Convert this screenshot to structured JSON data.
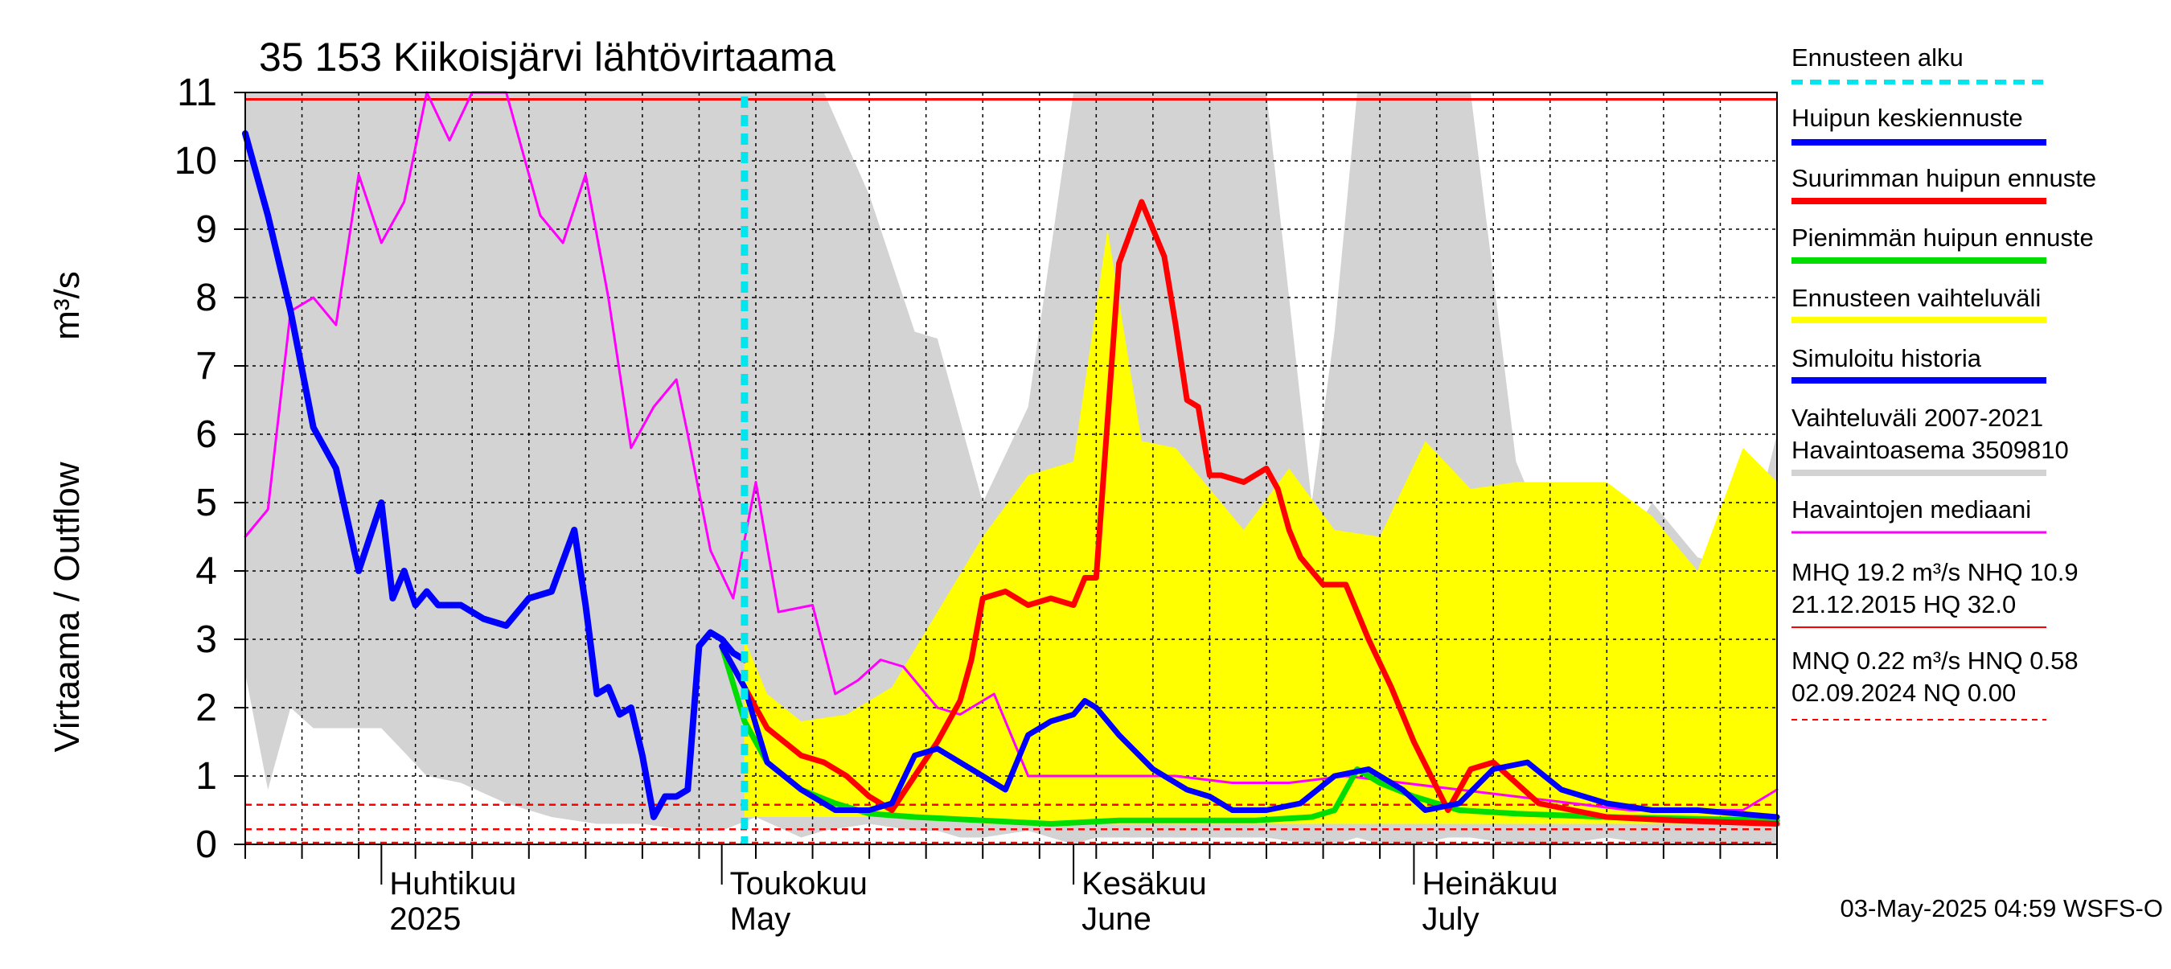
{
  "chart_data": {
    "type": "line",
    "title": "35 153 Kiikoisjärvi lähtövirtaama",
    "ylabel_left": "Virtaama / Outflow",
    "ylabel_unit": "m³/s",
    "ylim": [
      0,
      11
    ],
    "yticks": [
      0,
      1,
      2,
      3,
      4,
      5,
      6,
      7,
      8,
      9,
      10,
      11
    ],
    "x_range": [
      "2025-03-20",
      "2025-08-02"
    ],
    "grid": true,
    "legend_position": "right",
    "month_labels": [
      {
        "date": "2025-04-01",
        "fi": "Huhtikuu",
        "en": "2025"
      },
      {
        "date": "2025-05-01",
        "fi": "Toukokuu",
        "en": "May"
      },
      {
        "date": "2025-06-01",
        "fi": "Kesäkuu",
        "en": "June"
      },
      {
        "date": "2025-07-01",
        "fi": "Heinäkuu",
        "en": "July"
      }
    ],
    "forecast_start": "2025-05-03",
    "reference_lines": {
      "NHQ": 10.9,
      "HNQ": 0.58,
      "NQ": 0.0,
      "MNQ": 0.22
    },
    "series": [
      {
        "name": "Vaihteluväli 2007-2021 Havaintoasema 3509810",
        "kind": "band",
        "color": "#d3d3d3",
        "x": [
          "2025-03-20",
          "2025-03-22",
          "2025-03-24",
          "2025-03-26",
          "2025-04-01",
          "2025-04-05",
          "2025-04-08",
          "2025-04-12",
          "2025-04-16",
          "2025-04-20",
          "2025-04-24",
          "2025-04-28",
          "2025-05-01",
          "2025-05-04",
          "2025-05-08",
          "2025-05-10",
          "2025-05-14",
          "2025-05-18",
          "2025-05-20",
          "2025-05-22",
          "2025-05-24",
          "2025-05-28",
          "2025-06-01",
          "2025-06-03",
          "2025-06-06",
          "2025-06-10",
          "2025-06-14",
          "2025-06-18",
          "2025-06-22",
          "2025-06-24",
          "2025-06-26",
          "2025-06-28",
          "2025-07-01",
          "2025-07-04",
          "2025-07-06",
          "2025-07-10",
          "2025-07-14",
          "2025-07-18",
          "2025-07-22",
          "2025-07-26",
          "2025-07-30",
          "2025-08-02"
        ],
        "upper": [
          11,
          11,
          11,
          11,
          11,
          11,
          11,
          11,
          11,
          11,
          11,
          11,
          11,
          11,
          11,
          11,
          9.5,
          7.5,
          7.4,
          6.2,
          5.0,
          6.4,
          11,
          11,
          11,
          11,
          11,
          11,
          5.0,
          7.5,
          11,
          11,
          11,
          11,
          11,
          5.6,
          4.0,
          3.9,
          5.0,
          4.2,
          4.0,
          6.0
        ],
        "lower": [
          2.5,
          0.8,
          2.0,
          1.7,
          1.7,
          1.0,
          0.9,
          0.6,
          0.4,
          0.3,
          0.3,
          0.2,
          0.2,
          0.4,
          0.1,
          0.2,
          0.3,
          0.2,
          0.2,
          0.1,
          0.1,
          0.2,
          0.0,
          0.1,
          0.1,
          0.1,
          0.1,
          0.1,
          0.0,
          0.0,
          0.1,
          0.0,
          0.0,
          0.1,
          0.1,
          0.0,
          0.0,
          0.1,
          0.0,
          0.0,
          0.0,
          0.0
        ]
      },
      {
        "name": "Ennusteen vaihteluväli",
        "kind": "band",
        "color": "#ffff00",
        "x": [
          "2025-05-03",
          "2025-05-05",
          "2025-05-08",
          "2025-05-12",
          "2025-05-16",
          "2025-05-20",
          "2025-05-24",
          "2025-05-28",
          "2025-06-01",
          "2025-06-04",
          "2025-06-07",
          "2025-06-10",
          "2025-06-13",
          "2025-06-16",
          "2025-06-20",
          "2025-06-24",
          "2025-06-28",
          "2025-07-02",
          "2025-07-06",
          "2025-07-10",
          "2025-07-14",
          "2025-07-18",
          "2025-07-22",
          "2025-07-26",
          "2025-07-30",
          "2025-08-02"
        ],
        "upper": [
          3.0,
          2.2,
          1.8,
          1.9,
          2.3,
          3.4,
          4.5,
          5.4,
          5.6,
          9.0,
          5.9,
          5.8,
          5.2,
          4.6,
          5.5,
          4.6,
          4.5,
          5.9,
          5.2,
          5.3,
          5.3,
          5.3,
          4.8,
          4.0,
          5.8,
          5.3
        ],
        "lower": [
          0.4,
          0.4,
          0.4,
          0.4,
          0.4,
          0.4,
          0.3,
          0.3,
          0.3,
          0.3,
          0.3,
          0.3,
          0.3,
          0.3,
          0.3,
          0.3,
          0.3,
          0.3,
          0.3,
          0.3,
          0.3,
          0.3,
          0.3,
          0.3,
          0.3,
          0.3
        ]
      },
      {
        "name": "Havaintojen mediaani",
        "kind": "line",
        "color": "#ff00ff",
        "width": 3,
        "x": [
          "2025-03-20",
          "2025-03-22",
          "2025-03-24",
          "2025-03-26",
          "2025-03-28",
          "2025-03-30",
          "2025-04-01",
          "2025-04-03",
          "2025-04-05",
          "2025-04-07",
          "2025-04-09",
          "2025-04-12",
          "2025-04-15",
          "2025-04-17",
          "2025-04-19",
          "2025-04-21",
          "2025-04-23",
          "2025-04-25",
          "2025-04-27",
          "2025-04-28",
          "2025-04-30",
          "2025-05-02",
          "2025-05-04",
          "2025-05-06",
          "2025-05-09",
          "2025-05-11",
          "2025-05-13",
          "2025-05-15",
          "2025-05-17",
          "2025-05-20",
          "2025-05-22",
          "2025-05-25",
          "2025-05-28",
          "2025-06-01",
          "2025-06-05",
          "2025-06-10",
          "2025-06-15",
          "2025-06-20",
          "2025-06-25",
          "2025-06-30",
          "2025-07-05",
          "2025-07-10",
          "2025-07-15",
          "2025-07-20",
          "2025-07-25",
          "2025-07-30",
          "2025-08-02"
        ],
        "y": [
          4.5,
          4.9,
          7.8,
          8.0,
          7.6,
          9.8,
          8.8,
          9.4,
          11,
          10.3,
          11,
          11,
          9.2,
          8.8,
          9.8,
          8.0,
          5.8,
          6.4,
          6.8,
          6.0,
          4.3,
          3.6,
          5.3,
          3.4,
          3.5,
          2.2,
          2.4,
          2.7,
          2.6,
          2.0,
          1.9,
          2.2,
          1.0,
          1.0,
          1.0,
          1.0,
          0.9,
          0.9,
          1.0,
          0.9,
          0.8,
          0.7,
          0.6,
          0.5,
          0.5,
          0.5,
          0.8
        ]
      },
      {
        "name": "Simuloitu historia",
        "kind": "line",
        "color": "#0000ff",
        "width": 8,
        "x": [
          "2025-03-20",
          "2025-03-22",
          "2025-03-24",
          "2025-03-26",
          "2025-03-28",
          "2025-03-30",
          "2025-04-01",
          "2025-04-02",
          "2025-04-03",
          "2025-04-04",
          "2025-04-05",
          "2025-04-06",
          "2025-04-08",
          "2025-04-10",
          "2025-04-12",
          "2025-04-14",
          "2025-04-16",
          "2025-04-18",
          "2025-04-19",
          "2025-04-20",
          "2025-04-21",
          "2025-04-22",
          "2025-04-23",
          "2025-04-24",
          "2025-04-25",
          "2025-04-26",
          "2025-04-27",
          "2025-04-28",
          "2025-04-29",
          "2025-04-30",
          "2025-05-01",
          "2025-05-02",
          "2025-05-03"
        ],
        "y": [
          10.4,
          9.2,
          7.8,
          6.1,
          5.5,
          4.0,
          5.0,
          3.6,
          4.0,
          3.5,
          3.7,
          3.5,
          3.5,
          3.3,
          3.2,
          3.6,
          3.7,
          4.6,
          3.5,
          2.2,
          2.3,
          1.9,
          2.0,
          1.3,
          0.4,
          0.7,
          0.7,
          0.8,
          2.9,
          3.1,
          3.0,
          2.8,
          2.7
        ]
      },
      {
        "name": "Huipun keskiennuste",
        "kind": "line",
        "color": "#0000ff",
        "width": 7,
        "x": [
          "2025-05-01",
          "2025-05-03",
          "2025-05-05",
          "2025-05-08",
          "2025-05-11",
          "2025-05-14",
          "2025-05-16",
          "2025-05-18",
          "2025-05-20",
          "2025-05-22",
          "2025-05-24",
          "2025-05-26",
          "2025-05-28",
          "2025-05-30",
          "2025-06-01",
          "2025-06-02",
          "2025-06-03",
          "2025-06-05",
          "2025-06-08",
          "2025-06-11",
          "2025-06-13",
          "2025-06-15",
          "2025-06-18",
          "2025-06-21",
          "2025-06-24",
          "2025-06-27",
          "2025-06-30",
          "2025-07-02",
          "2025-07-05",
          "2025-07-08",
          "2025-07-11",
          "2025-07-14",
          "2025-07-18",
          "2025-07-22",
          "2025-07-26",
          "2025-08-02"
        ],
        "y": [
          2.9,
          2.3,
          1.2,
          0.8,
          0.5,
          0.5,
          0.6,
          1.3,
          1.4,
          1.2,
          1.0,
          0.8,
          1.6,
          1.8,
          1.9,
          2.1,
          2.0,
          1.6,
          1.1,
          0.8,
          0.7,
          0.5,
          0.5,
          0.6,
          1.0,
          1.1,
          0.8,
          0.5,
          0.6,
          1.1,
          1.2,
          0.8,
          0.6,
          0.5,
          0.5,
          0.4
        ]
      },
      {
        "name": "Suurimman huipun ennuste",
        "kind": "line",
        "color": "#ff0000",
        "width": 7,
        "x": [
          "2025-05-01",
          "2025-05-03",
          "2025-05-05",
          "2025-05-08",
          "2025-05-10",
          "2025-05-12",
          "2025-05-14",
          "2025-05-16",
          "2025-05-18",
          "2025-05-20",
          "2025-05-22",
          "2025-05-23",
          "2025-05-24",
          "2025-05-26",
          "2025-05-28",
          "2025-05-30",
          "2025-06-01",
          "2025-06-02",
          "2025-06-03",
          "2025-06-04",
          "2025-06-05",
          "2025-06-07",
          "2025-06-09",
          "2025-06-10",
          "2025-06-11",
          "2025-06-12",
          "2025-06-13",
          "2025-06-14",
          "2025-06-16",
          "2025-06-18",
          "2025-06-19",
          "2025-06-20",
          "2025-06-21",
          "2025-06-23",
          "2025-06-25",
          "2025-06-27",
          "2025-06-29",
          "2025-07-01",
          "2025-07-04",
          "2025-07-06",
          "2025-07-08",
          "2025-07-12",
          "2025-07-18",
          "2025-07-24",
          "2025-08-02"
        ],
        "y": [
          2.9,
          2.3,
          1.7,
          1.3,
          1.2,
          1.0,
          0.7,
          0.5,
          1.0,
          1.5,
          2.1,
          2.7,
          3.6,
          3.7,
          3.5,
          3.6,
          3.5,
          3.9,
          3.9,
          6.2,
          8.5,
          9.4,
          8.6,
          7.6,
          6.5,
          6.4,
          5.4,
          5.4,
          5.3,
          5.5,
          5.2,
          4.6,
          4.2,
          3.8,
          3.8,
          3.0,
          2.3,
          1.5,
          0.5,
          1.1,
          1.2,
          0.6,
          0.4,
          0.35,
          0.3
        ]
      },
      {
        "name": "Pienimmän huipun ennuste",
        "kind": "line",
        "color": "#00dd00",
        "width": 7,
        "x": [
          "2025-05-01",
          "2025-05-03",
          "2025-05-05",
          "2025-05-08",
          "2025-05-11",
          "2025-05-14",
          "2025-05-18",
          "2025-05-24",
          "2025-05-30",
          "2025-06-05",
          "2025-06-11",
          "2025-06-17",
          "2025-06-22",
          "2025-06-24",
          "2025-06-25",
          "2025-06-26",
          "2025-06-27",
          "2025-06-28",
          "2025-07-01",
          "2025-07-05",
          "2025-07-10",
          "2025-07-18",
          "2025-08-02"
        ],
        "y": [
          2.9,
          1.8,
          1.2,
          0.8,
          0.6,
          0.45,
          0.4,
          0.35,
          0.3,
          0.35,
          0.35,
          0.35,
          0.4,
          0.5,
          0.8,
          1.1,
          1.0,
          0.9,
          0.7,
          0.5,
          0.45,
          0.4,
          0.35
        ]
      }
    ],
    "legend": [
      {
        "label": "Ennusteen alku",
        "color": "#00e5ee",
        "style": "dash",
        "width": 6
      },
      {
        "label": "Huipun keskiennuste",
        "color": "#0000ff",
        "style": "solid",
        "width": 8
      },
      {
        "label": "Suurimman huipun ennuste",
        "color": "#ff0000",
        "style": "solid",
        "width": 8
      },
      {
        "label": "Pienimmän huipun ennuste",
        "color": "#00dd00",
        "style": "solid",
        "width": 8
      },
      {
        "label": "Ennusteen vaihteluväli",
        "color": "#ffff00",
        "style": "solid",
        "width": 8
      },
      {
        "label": "Simuloitu historia",
        "color": "#0000ff",
        "style": "solid",
        "width": 8
      },
      {
        "label": "Vaihteluväli 2007-2021",
        "label2": " Havaintoasema 3509810",
        "color": "#d3d3d3",
        "style": "solid",
        "width": 8
      },
      {
        "label": "Havaintojen mediaani",
        "color": "#ff00ff",
        "style": "solid",
        "width": 3
      },
      {
        "label": "MHQ 19.2 m³/s NHQ 10.9",
        "label2": "21.12.2015 HQ 32.0",
        "color": "#ff0000",
        "style": "solid",
        "width": 2
      },
      {
        "label": "MNQ 0.22 m³/s HNQ 0.58",
        "label2": "02.09.2024 NQ 0.00",
        "color": "#ff0000",
        "style": "dash",
        "width": 2
      }
    ],
    "timestamp": "03-May-2025 04:59 WSFS-O"
  }
}
